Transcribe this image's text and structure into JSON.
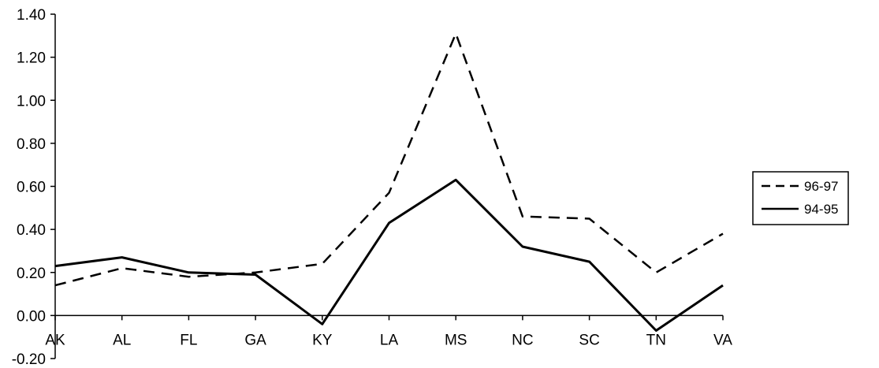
{
  "chart_data": {
    "type": "line",
    "categories": [
      "AK",
      "AL",
      "FL",
      "GA",
      "KY",
      "LA",
      "MS",
      "NC",
      "SC",
      "TN",
      "VA"
    ],
    "series": [
      {
        "name": "96-97",
        "style": "dashed",
        "color": "#000000",
        "values": [
          0.14,
          0.22,
          0.18,
          0.2,
          0.24,
          0.57,
          1.31,
          0.46,
          0.45,
          0.2,
          0.38
        ]
      },
      {
        "name": "94-95",
        "style": "solid",
        "color": "#000000",
        "values": [
          0.23,
          0.27,
          0.2,
          0.19,
          -0.04,
          0.43,
          0.63,
          0.32,
          0.25,
          -0.07,
          0.14
        ]
      }
    ],
    "title": "",
    "xlabel": "",
    "ylabel": "",
    "ylim": [
      -0.2,
      1.4
    ],
    "yticks": [
      "-0.20",
      "0.00",
      "0.20",
      "0.40",
      "0.60",
      "0.80",
      "1.00",
      "1.20",
      "1.40"
    ],
    "grid": false,
    "legend_position": "right"
  }
}
